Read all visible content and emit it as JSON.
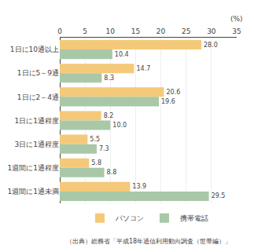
{
  "chart_data": {
    "type": "bar",
    "orientation": "horizontal",
    "categories": [
      "1日に10通以上",
      "1日に5～9通",
      "1日に2～4通",
      "1日に1通程度",
      "3日に1通程度",
      "1週間に1通程度",
      "1週間に1通未満"
    ],
    "series": [
      {
        "name": "パソコン",
        "color": "#F5C97A",
        "values": [
          28.0,
          14.7,
          20.6,
          8.2,
          5.5,
          5.8,
          13.9
        ],
        "value_labels": [
          "28.0",
          "14.7",
          "20.6",
          "8.2",
          "5.5",
          "5.8",
          "13.9"
        ]
      },
      {
        "name": "携帯電話",
        "color": "#A8C8A8",
        "values": [
          10.4,
          8.3,
          19.6,
          10.0,
          7.3,
          8.8,
          29.5
        ],
        "value_labels": [
          "10.4",
          "8.3",
          "19.6",
          "10.0",
          "7.3",
          "8.8",
          "29.5"
        ]
      }
    ],
    "xlim": [
      0,
      35
    ],
    "xticks": [
      0,
      5,
      10,
      15,
      20,
      25,
      30,
      35
    ],
    "xlabel": "(%)",
    "annotations": [
      "（出典）総務省「平成18年通信利用動向調査（世帯編）」"
    ],
    "grid": true,
    "legend": "bottom",
    "data_labels": true
  }
}
